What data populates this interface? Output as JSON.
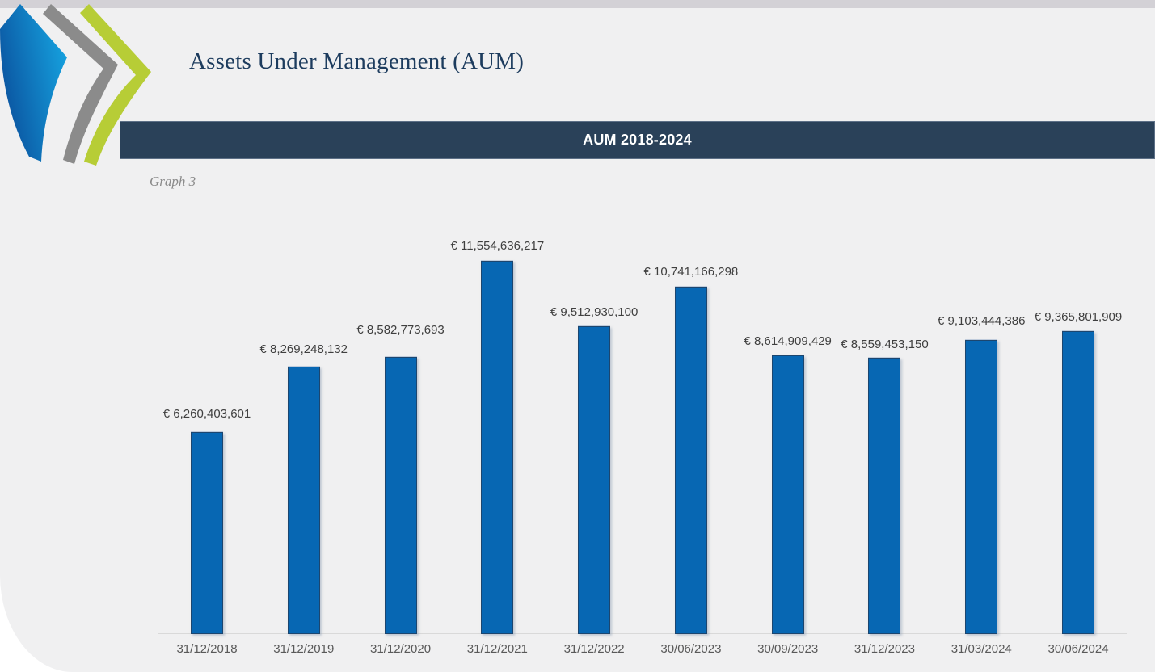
{
  "page": {
    "title": "Assets Under Management (AUM)",
    "banner_title": "AUM 2018-2024",
    "graph_caption": "Graph 3"
  },
  "colors": {
    "outside_bg": "#ffffff",
    "page_bg": "#f0f0f1",
    "top_strip": "#d3d1d6",
    "banner_bg": "#2a4159",
    "banner_text": "#ffffff",
    "title_text": "#1d3c5e",
    "caption_text": "#8a8a8a",
    "bar_fill": "#0767b3",
    "bar_border": "#1c466f",
    "label_text": "#3f3f3f",
    "tick_text": "#595959",
    "axis_line": "#d9d9d9"
  },
  "logo": {
    "description": "three-chevrons-logo",
    "colors": {
      "blue_dark": "#0a4f9c",
      "blue_light": "#16a3e0",
      "gray": "#8b8b8b",
      "green": "#b7cd36"
    }
  },
  "chart_data": {
    "type": "bar",
    "title": "AUM 2018-2024",
    "caption": "Graph 3",
    "currency": "EUR",
    "categories": [
      "31/12/2018",
      "31/12/2019",
      "31/12/2020",
      "31/12/2021",
      "31/12/2022",
      "30/06/2023",
      "30/09/2023",
      "31/12/2023",
      "31/03/2024",
      "30/06/2024"
    ],
    "values": [
      6260403601,
      8269248132,
      8582773693,
      11554636217,
      9512930100,
      10741166298,
      8614909429,
      8559453150,
      9103444386,
      9365801909
    ],
    "data_labels": [
      "€ 6,260,403,601",
      "€ 8,269,248,132",
      "€ 8,582,773,693",
      "€ 11,554,636,217",
      "€ 9,512,930,100",
      "€ 10,741,166,298",
      "€ 8,614,909,429",
      "€ 8,559,453,150",
      "€ 9,103,444,386",
      "€ 9,365,801,909"
    ],
    "xlabel": "",
    "ylabel": "",
    "ylim": [
      0,
      12000000000
    ],
    "grid": false,
    "legend": "none",
    "data_labels_position": "above-bars",
    "x_axis_visible": true,
    "y_axis_visible": false
  }
}
